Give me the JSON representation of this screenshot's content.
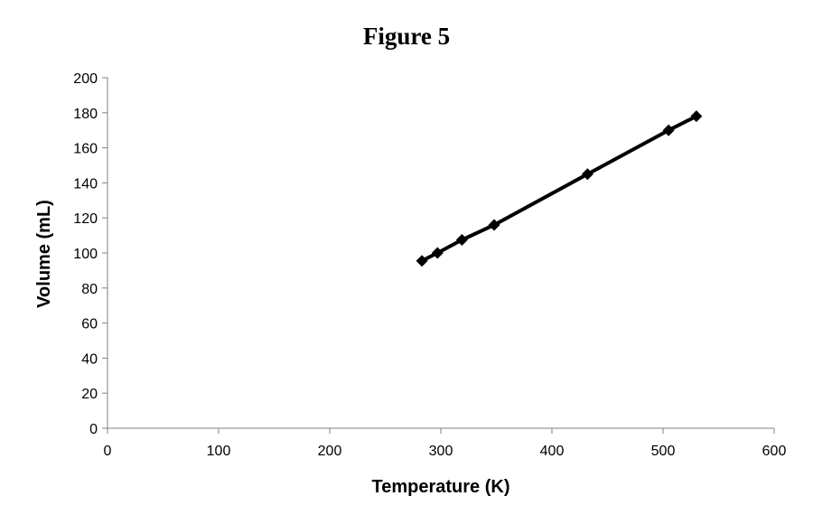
{
  "chart_data": {
    "type": "scatter",
    "title": "Figure 5",
    "xlabel": "Temperature (K)",
    "ylabel": "Volume (mL)",
    "xlim": [
      0,
      600
    ],
    "ylim": [
      0,
      200
    ],
    "x_ticks": [
      0,
      100,
      200,
      300,
      400,
      500,
      600
    ],
    "y_ticks": [
      0,
      20,
      40,
      60,
      80,
      100,
      120,
      140,
      160,
      180,
      200
    ],
    "grid": false,
    "legend": "none",
    "marker": "diamond",
    "line": "straight",
    "series_color": "#000000",
    "series": [
      {
        "x": [
          283,
          297,
          319,
          348,
          432,
          505,
          530
        ],
        "y": [
          95.5,
          100,
          107.5,
          116,
          145,
          170,
          178
        ]
      }
    ]
  }
}
